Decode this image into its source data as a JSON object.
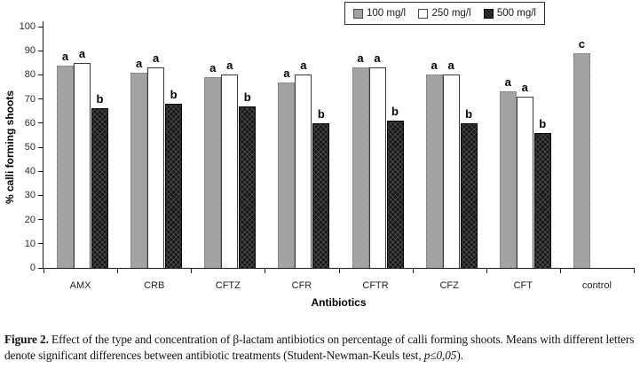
{
  "chart_data": {
    "type": "bar",
    "title": "",
    "categories": [
      "AMX",
      "CRB",
      "CFTZ",
      "CFR",
      "CFTR",
      "CFZ",
      "CFT",
      "control"
    ],
    "series": [
      {
        "name": "100 mg/l",
        "color": "#a3a3a3",
        "values": [
          84,
          81,
          79,
          77,
          83,
          80,
          73,
          89
        ]
      },
      {
        "name": "250 mg/l",
        "color": "#ffffff",
        "values": [
          85,
          83,
          80,
          80,
          83,
          80,
          71,
          null
        ]
      },
      {
        "name": "500 mg/l",
        "color": "#161616",
        "values": [
          66,
          68,
          67,
          60,
          61,
          60,
          56,
          null
        ]
      }
    ],
    "sig_letters": [
      [
        "a",
        "a",
        "b"
      ],
      [
        "a",
        "a",
        "b"
      ],
      [
        "a",
        "a",
        "b"
      ],
      [
        "a",
        "a",
        "b"
      ],
      [
        "a",
        "a",
        "b"
      ],
      [
        "a",
        "a",
        "b"
      ],
      [
        "a",
        "a",
        "b"
      ],
      [
        "c",
        "",
        ""
      ]
    ],
    "xlabel": "Antibiotics",
    "ylabel": "% calli forming shoots",
    "ylim": [
      0,
      100
    ],
    "ytick_step": 10,
    "yticks": [
      0,
      10,
      20,
      30,
      40,
      50,
      60,
      70,
      80,
      90,
      100
    ],
    "grid": false,
    "legend_position": "top-right"
  },
  "caption": {
    "label": "Figure 2.",
    "text_before_stat": " Effect of the type and concentration of β-lactam antibiotics on percentage of calli forming shoots. Means with different letters denote significant differences between antibiotic treatments (Student-Newman-Keuls test, ",
    "stat": "p≤0,05",
    "text_after_stat": ")."
  }
}
